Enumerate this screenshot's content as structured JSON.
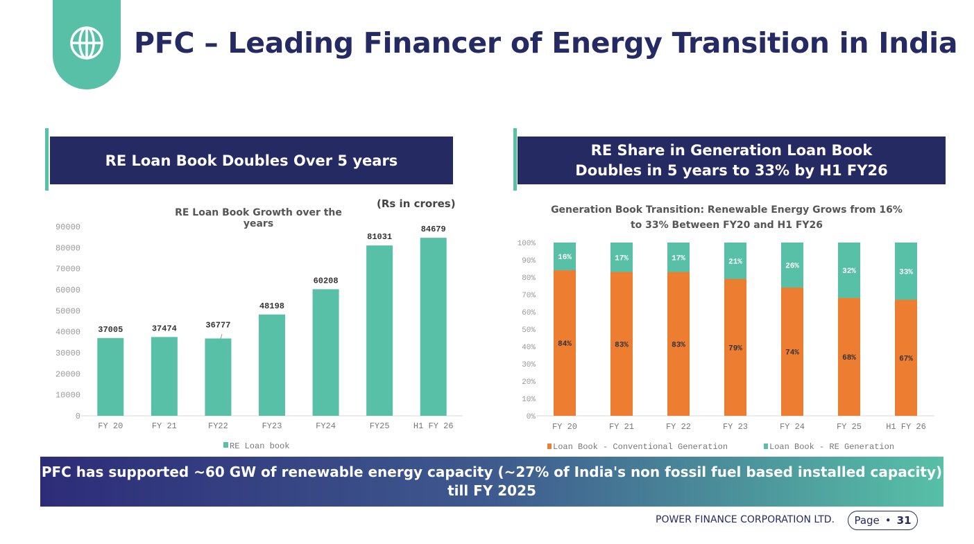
{
  "title": "PFC – Leading Financer of Energy Transition in India",
  "left_panel": {
    "header": "RE Loan Book Doubles Over 5 years",
    "unit_note": "(Rs in crores)"
  },
  "right_panel": {
    "header_line1": "RE Share in Generation Loan Book",
    "header_line2": "Doubles in 5 years to 33% by H1 FY26"
  },
  "chart_data": [
    {
      "type": "bar",
      "title": "RE Loan Book Growth over the years",
      "categories": [
        "FY 20",
        "FY 21",
        "FY22",
        "FY23",
        "FY24",
        "FY25",
        "H1 FY 26"
      ],
      "values": [
        37005,
        37474,
        36777,
        48198,
        60208,
        81031,
        84679
      ],
      "yticks": [
        "0",
        "10000",
        "20000",
        "30000",
        "40000",
        "50000",
        "60000",
        "70000",
        "80000",
        "90000"
      ],
      "ylim": [
        0,
        90000
      ],
      "legend": "RE Loan book",
      "color": "#57c0a6"
    },
    {
      "type": "bar",
      "stacked": true,
      "title_line1": "Generation Book Transition: Renewable Energy Grows from 16%",
      "title_line2": "to 33% Between FY20 and H1 FY26",
      "categories": [
        "FY 20",
        "FY 21",
        "FY 22",
        "FY 23",
        "FY 24",
        "FY 25",
        "H1 FY 26"
      ],
      "series": [
        {
          "name": "Loan Book - Conventional Generation",
          "values": [
            84,
            83,
            83,
            79,
            74,
            68,
            67
          ],
          "color": "#ed7d31"
        },
        {
          "name": "Loan Book - RE Generation",
          "values": [
            16,
            17,
            17,
            21,
            26,
            32,
            33
          ],
          "color": "#57c0a6"
        }
      ],
      "yticks": [
        "0%",
        "10%",
        "20%",
        "30%",
        "40%",
        "50%",
        "60%",
        "70%",
        "80%",
        "90%",
        "100%"
      ],
      "ylim": [
        0,
        100
      ]
    }
  ],
  "banner": {
    "line1": "PFC has supported ~60 GW of renewable energy capacity (~27% of India's non fossil fuel based installed capacity)",
    "line2": "till FY 2025"
  },
  "footer": {
    "company": "POWER FINANCE CORPORATION LTD.",
    "page_label": "Page",
    "page_number": "31"
  }
}
